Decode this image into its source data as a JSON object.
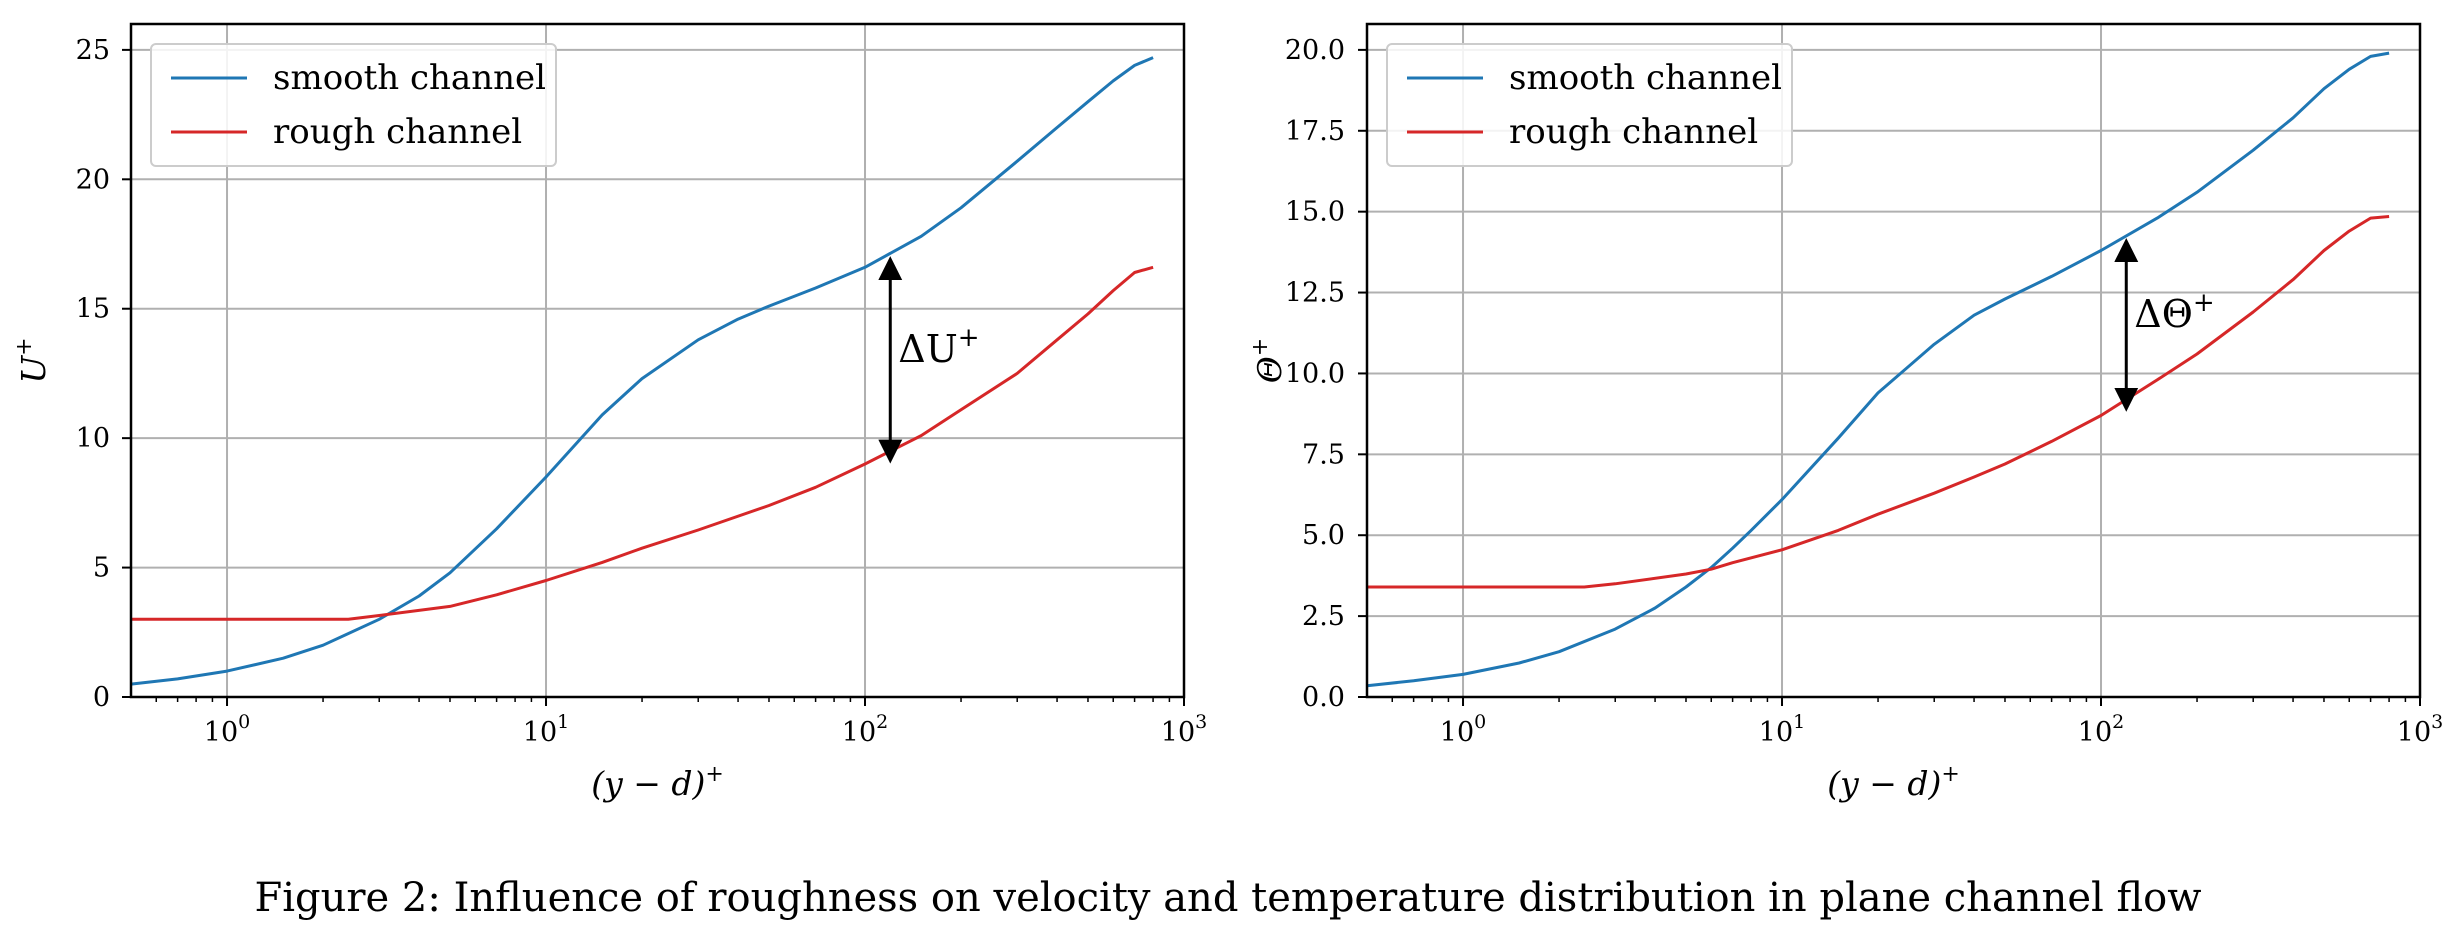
{
  "caption": "Figure 2: Influence of roughness on velocity and temperature distribution in plane channel flow",
  "colors": {
    "smooth": "#1f77b4",
    "rough": "#d62728",
    "grid": "#b0b0b0",
    "arrow": "#000000"
  },
  "chart_data": [
    {
      "type": "line",
      "xscale": "log",
      "xlim": [
        0.5,
        1000
      ],
      "ylim": [
        0,
        26
      ],
      "xlabel": "(y − d)+",
      "ylabel": "U+",
      "grid": true,
      "legend_position": "top-left",
      "xticks": [
        {
          "value": 1,
          "base": "10",
          "exp": "0"
        },
        {
          "value": 10,
          "base": "10",
          "exp": "1"
        },
        {
          "value": 100,
          "base": "10",
          "exp": "2"
        },
        {
          "value": 1000,
          "base": "10",
          "exp": "3"
        }
      ],
      "yticks": [
        {
          "value": 0,
          "label": "0"
        },
        {
          "value": 5,
          "label": "5"
        },
        {
          "value": 10,
          "label": "10"
        },
        {
          "value": 15,
          "label": "15"
        },
        {
          "value": 20,
          "label": "20"
        },
        {
          "value": 25,
          "label": "25"
        }
      ],
      "series": [
        {
          "name": "smooth channel",
          "color": "#1f77b4",
          "x": [
            0.5,
            0.7,
            1,
            1.5,
            2,
            3,
            4,
            5,
            7,
            10,
            15,
            20,
            30,
            40,
            50,
            70,
            100,
            150,
            200,
            300,
            400,
            500,
            600,
            700,
            800
          ],
          "y": [
            0.5,
            0.7,
            1.0,
            1.5,
            2.0,
            3.0,
            3.9,
            4.8,
            6.5,
            8.5,
            10.9,
            12.3,
            13.8,
            14.6,
            15.1,
            15.8,
            16.6,
            17.8,
            18.9,
            20.7,
            22.0,
            23.0,
            23.8,
            24.4,
            24.7
          ]
        },
        {
          "name": "rough channel",
          "color": "#d62728",
          "x": [
            0.5,
            1,
            2.4,
            3,
            5,
            7,
            10,
            15,
            20,
            30,
            50,
            70,
            100,
            150,
            200,
            300,
            400,
            500,
            600,
            700,
            800
          ],
          "y": [
            3.0,
            3.0,
            3.0,
            3.15,
            3.5,
            3.95,
            4.5,
            5.2,
            5.75,
            6.45,
            7.4,
            8.1,
            9.0,
            10.1,
            11.1,
            12.5,
            13.8,
            14.8,
            15.7,
            16.4,
            16.6
          ]
        }
      ],
      "annotation": {
        "text": "ΔU+",
        "base": "ΔU",
        "sup": "+",
        "x": 120,
        "y_from": 16.8,
        "y_to": 9.25
      }
    },
    {
      "type": "line",
      "xscale": "log",
      "xlim": [
        0.5,
        1000
      ],
      "ylim": [
        0,
        20.8
      ],
      "xlabel": "(y − d)+",
      "ylabel": "Θ+",
      "grid": true,
      "legend_position": "top-left",
      "xticks": [
        {
          "value": 1,
          "base": "10",
          "exp": "0"
        },
        {
          "value": 10,
          "base": "10",
          "exp": "1"
        },
        {
          "value": 100,
          "base": "10",
          "exp": "2"
        },
        {
          "value": 1000,
          "base": "10",
          "exp": "3"
        }
      ],
      "yticks": [
        {
          "value": 0,
          "label": "0.0"
        },
        {
          "value": 2.5,
          "label": "2.5"
        },
        {
          "value": 5,
          "label": "5.0"
        },
        {
          "value": 7.5,
          "label": "7.5"
        },
        {
          "value": 10,
          "label": "10.0"
        },
        {
          "value": 12.5,
          "label": "12.5"
        },
        {
          "value": 15,
          "label": "15.0"
        },
        {
          "value": 17.5,
          "label": "17.5"
        },
        {
          "value": 20,
          "label": "20.0"
        }
      ],
      "series": [
        {
          "name": "smooth channel",
          "color": "#1f77b4",
          "x": [
            0.5,
            0.7,
            1,
            1.5,
            2,
            3,
            4,
            5,
            6,
            7,
            8,
            10,
            15,
            20,
            30,
            40,
            50,
            70,
            100,
            150,
            200,
            300,
            400,
            500,
            600,
            700,
            800
          ],
          "y": [
            0.35,
            0.5,
            0.7,
            1.05,
            1.4,
            2.1,
            2.75,
            3.4,
            4.0,
            4.6,
            5.15,
            6.1,
            8.0,
            9.4,
            10.9,
            11.8,
            12.3,
            13.0,
            13.8,
            14.8,
            15.6,
            16.9,
            17.9,
            18.8,
            19.4,
            19.8,
            19.9
          ]
        },
        {
          "name": "rough channel",
          "color": "#d62728",
          "x": [
            0.5,
            1,
            2.4,
            3,
            5,
            6,
            7,
            10,
            15,
            20,
            30,
            40,
            50,
            70,
            100,
            150,
            200,
            300,
            400,
            500,
            600,
            700,
            800
          ],
          "y": [
            3.4,
            3.4,
            3.4,
            3.5,
            3.8,
            3.95,
            4.15,
            4.55,
            5.15,
            5.65,
            6.3,
            6.8,
            7.2,
            7.9,
            8.7,
            9.8,
            10.6,
            11.9,
            12.9,
            13.8,
            14.4,
            14.8,
            14.85
          ]
        }
      ],
      "annotation": {
        "text": "ΔΘ+",
        "base": "ΔΘ",
        "sup": "+",
        "x": 120,
        "y_from": 14.0,
        "y_to": 9.0
      }
    }
  ]
}
